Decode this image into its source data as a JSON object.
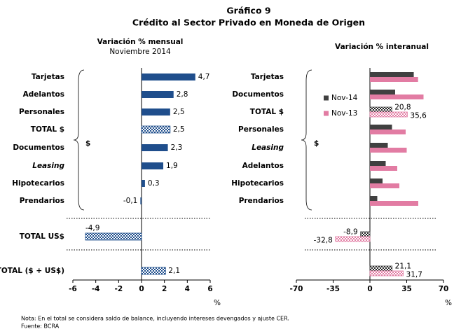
{
  "title": "Gráfico 9",
  "subtitle": "Crédito al Sector Privado en Moneda de Origen",
  "note": "Nota: En el total se considera saldo de balance, incluyendo intereses devengados y ajuste CER.",
  "source": "Fuente: BCRA",
  "chart_data": [
    {
      "type": "bar",
      "orientation": "horizontal",
      "title": "Variación % mensual",
      "subtitle": "Noviembre 2014",
      "categories": [
        "Tarjetas",
        "Adelantos",
        "Personales",
        "TOTAL $",
        "Documentos",
        "Leasing",
        "Hipotecarios",
        "Prendarios",
        "TOTAL US$",
        "TOTAL ($ + US$)"
      ],
      "values": [
        4.7,
        2.8,
        2.5,
        2.5,
        2.3,
        1.9,
        0.3,
        -0.1,
        -4.9,
        2.1
      ],
      "value_labels": [
        "4,7",
        "2,8",
        "2,5",
        "2,5",
        "2,3",
        "1,9",
        "0,3",
        "-0,1",
        "-4,9",
        "2,1"
      ],
      "color": "#1f4e8c",
      "bracket_label": "$",
      "xlim": [
        -6,
        6
      ],
      "xticks": [
        -6,
        -4,
        -2,
        0,
        2,
        4,
        6
      ],
      "xlabel": "%"
    },
    {
      "type": "bar",
      "orientation": "horizontal",
      "title": "Variación % interanual",
      "categories": [
        "Tarjetas",
        "Documentos",
        "TOTAL $",
        "Personales",
        "Leasing",
        "Adelantos",
        "Hipotecarios",
        "Prendarios",
        null,
        null
      ],
      "series": [
        {
          "name": "Nov-14",
          "color": "#404040",
          "values": [
            41.7,
            24,
            20.8,
            21,
            17,
            15,
            12,
            7,
            -8.9,
            21.1
          ],
          "value_labels": [
            null,
            null,
            "20,8",
            null,
            null,
            null,
            null,
            null,
            "-8,9",
            "21,1"
          ]
        },
        {
          "name": "Nov-13",
          "color": "#e27ca3",
          "values": [
            45.8,
            51,
            35.6,
            34,
            35,
            26,
            28,
            46,
            -32.8,
            31.7
          ],
          "value_labels": [
            null,
            null,
            "35,6",
            null,
            null,
            null,
            null,
            null,
            "-32,8",
            "31,7"
          ]
        }
      ],
      "bracket_label": "$",
      "xlim": [
        -70,
        70
      ],
      "xticks": [
        -70,
        -35,
        0,
        35,
        70
      ],
      "xlabel": "%"
    }
  ]
}
